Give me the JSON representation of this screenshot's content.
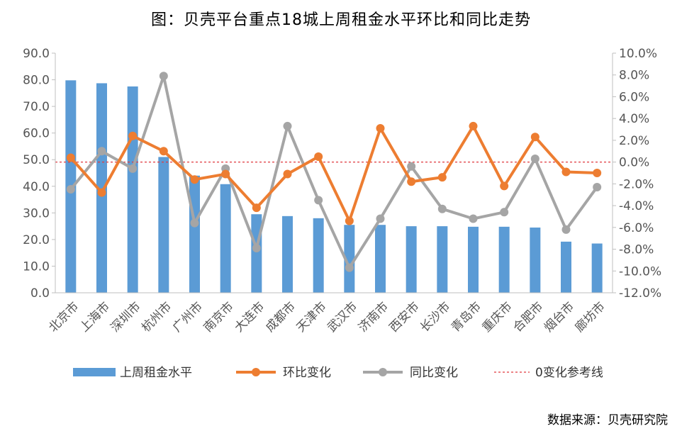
{
  "chart_title": "图：贝壳平台重点18城上周租金水平环比和同比走势",
  "source_note": "数据来源：贝壳研究院",
  "chart_data": {
    "type": "bar",
    "title": "图：贝壳平台重点18城上周租金水平环比和同比走势",
    "categories": [
      "北京市",
      "上海市",
      "深圳市",
      "杭州市",
      "广州市",
      "南京市",
      "大连市",
      "成都市",
      "天津市",
      "武汉市",
      "济南市",
      "西安市",
      "长沙市",
      "青岛市",
      "重庆市",
      "合肥市",
      "烟台市",
      "廊坊市"
    ],
    "y_left": {
      "ylim": [
        0,
        90
      ],
      "ticks": [
        "0.0",
        "10.0",
        "20.0",
        "30.0",
        "40.0",
        "50.0",
        "60.0",
        "70.0",
        "80.0",
        "90.0"
      ]
    },
    "y_right": {
      "ylim": [
        -12,
        10
      ],
      "ticks": [
        "-12.0%",
        "-10.0%",
        "-8.0%",
        "-6.0%",
        "-4.0%",
        "-2.0%",
        "0.0%",
        "2.0%",
        "4.0%",
        "6.0%",
        "8.0%",
        "10.0%"
      ]
    },
    "series": [
      {
        "name": "上周租金水平",
        "kind": "bar",
        "axis": "left",
        "color": "#5b9bd5",
        "values": [
          79.8,
          78.7,
          77.5,
          51.0,
          44.0,
          40.8,
          29.5,
          28.8,
          28.0,
          25.5,
          25.5,
          25.0,
          25.0,
          24.8,
          24.8,
          24.5,
          19.2,
          18.5
        ]
      },
      {
        "name": "环比变化",
        "kind": "line",
        "axis": "right",
        "color": "#ed7d31",
        "values": [
          0.4,
          -2.8,
          2.4,
          1.0,
          -1.6,
          -1.1,
          -4.2,
          -1.1,
          0.5,
          -5.4,
          3.1,
          -1.8,
          -1.4,
          3.3,
          -2.2,
          2.3,
          -0.9,
          -1.0
        ]
      },
      {
        "name": "同比变化",
        "kind": "line",
        "axis": "right",
        "color": "#a5a5a5",
        "values": [
          -2.5,
          1.0,
          -0.6,
          7.9,
          -5.6,
          -0.6,
          -7.9,
          3.3,
          -3.5,
          -9.7,
          -5.2,
          -0.4,
          -4.3,
          -5.2,
          -4.6,
          0.3,
          -6.2,
          -2.3
        ]
      },
      {
        "name": "0变化参考线",
        "kind": "reference",
        "axis": "right",
        "color": "#e0393e",
        "value": 0
      }
    ],
    "legend_position": "bottom",
    "grid": false
  }
}
